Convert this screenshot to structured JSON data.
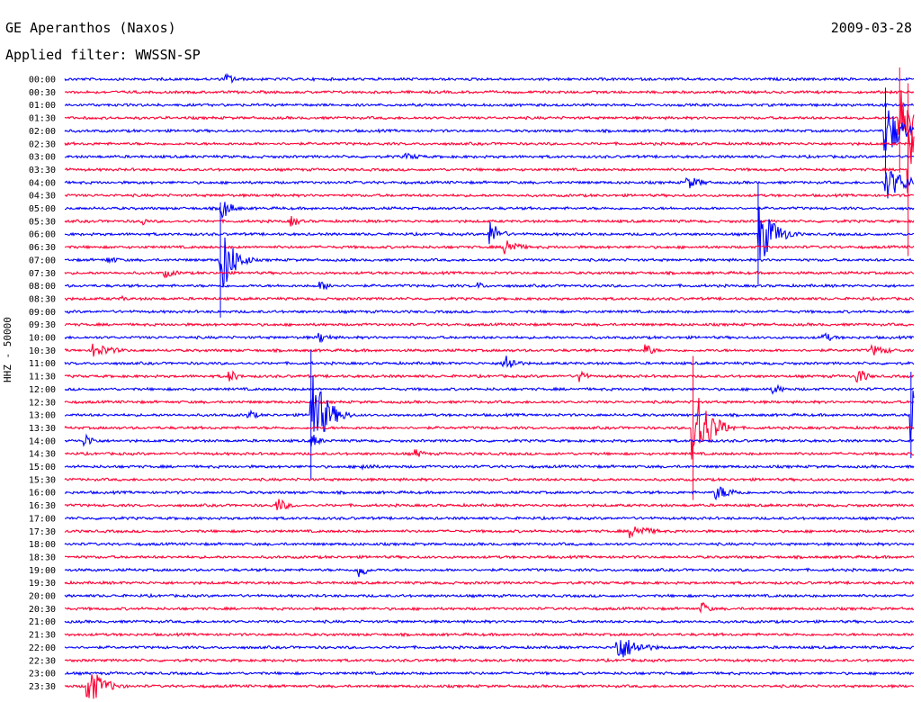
{
  "header": {
    "station": "GE Aperanthos (Naxos)",
    "date": "2009-03-28",
    "filter": "Applied filter: WWSSN-SP"
  },
  "chart_data": {
    "type": "line",
    "description_free": true,
    "ylabel": "HHZ - 50000",
    "colors": [
      "#0000ff",
      "#ff0033"
    ],
    "rows": [
      "00:00",
      "00:30",
      "01:00",
      "01:30",
      "02:00",
      "02:30",
      "03:00",
      "03:30",
      "04:00",
      "04:30",
      "05:00",
      "05:30",
      "06:00",
      "06:30",
      "07:00",
      "07:30",
      "08:00",
      "08:30",
      "09:00",
      "09:30",
      "10:00",
      "10:30",
      "11:00",
      "11:30",
      "12:00",
      "12:30",
      "13:00",
      "13:30",
      "14:00",
      "14:30",
      "15:00",
      "15:30",
      "16:00",
      "16:30",
      "17:00",
      "17:30",
      "18:00",
      "18:30",
      "19:00",
      "19:30",
      "20:00",
      "20:30",
      "21:00",
      "21:30",
      "22:00",
      "22:30",
      "23:00",
      "23:30"
    ],
    "events": [
      {
        "row": 0,
        "minute": 5.7,
        "amp": 6,
        "dur": 1.0
      },
      {
        "row": 2,
        "minute": 29.0,
        "amp": 3,
        "dur": 2.0
      },
      {
        "row": 3,
        "minute": 29.5,
        "amp": 38,
        "dur": 1.5,
        "spike": true
      },
      {
        "row": 4,
        "minute": 29.0,
        "amp": 30,
        "dur": 1.5,
        "spike": true
      },
      {
        "row": 6,
        "minute": 12.0,
        "amp": 4,
        "dur": 2.0
      },
      {
        "row": 8,
        "minute": 22.0,
        "amp": 7,
        "dur": 1.5
      },
      {
        "row": 8,
        "minute": 29.0,
        "amp": 18,
        "dur": 2.0
      },
      {
        "row": 7,
        "minute": 29.8,
        "amp": 60,
        "dur": 1.0,
        "spike": true
      },
      {
        "row": 10,
        "minute": 5.5,
        "amp": 12,
        "dur": 1.0
      },
      {
        "row": 11,
        "minute": 2.7,
        "amp": 5,
        "dur": 0.5
      },
      {
        "row": 11,
        "minute": 8.0,
        "amp": 6,
        "dur": 0.8
      },
      {
        "row": 12,
        "minute": 15.0,
        "amp": 14,
        "dur": 1.0
      },
      {
        "row": 12,
        "minute": 24.5,
        "amp": 35,
        "dur": 1.5,
        "spike": true
      },
      {
        "row": 13,
        "minute": 15.5,
        "amp": 12,
        "dur": 1.2
      },
      {
        "row": 14,
        "minute": 5.5,
        "amp": 40,
        "dur": 1.2,
        "spike": true
      },
      {
        "row": 14,
        "minute": 1.5,
        "amp": 4,
        "dur": 1.5
      },
      {
        "row": 15,
        "minute": 3.5,
        "amp": 5,
        "dur": 1.5
      },
      {
        "row": 16,
        "minute": 9.0,
        "amp": 5,
        "dur": 1.5
      },
      {
        "row": 16,
        "minute": 14.6,
        "amp": 4,
        "dur": 0.6
      },
      {
        "row": 17,
        "minute": 2.0,
        "amp": 3,
        "dur": 0.6
      },
      {
        "row": 21,
        "minute": 1.0,
        "amp": 8,
        "dur": 2.0
      },
      {
        "row": 20,
        "minute": 9.0,
        "amp": 6,
        "dur": 1.0
      },
      {
        "row": 20,
        "minute": 26.8,
        "amp": 5,
        "dur": 1.2
      },
      {
        "row": 21,
        "minute": 20.5,
        "amp": 7,
        "dur": 0.8
      },
      {
        "row": 21,
        "minute": 28.5,
        "amp": 6,
        "dur": 2.0
      },
      {
        "row": 22,
        "minute": 15.5,
        "amp": 12,
        "dur": 1.0
      },
      {
        "row": 23,
        "minute": 5.8,
        "amp": 7,
        "dur": 0.8
      },
      {
        "row": 23,
        "minute": 18.2,
        "amp": 10,
        "dur": 0.5
      },
      {
        "row": 23,
        "minute": 28.0,
        "amp": 10,
        "dur": 0.8
      },
      {
        "row": 24,
        "minute": 25.0,
        "amp": 6,
        "dur": 1.0
      },
      {
        "row": 26,
        "minute": 8.7,
        "amp": 45,
        "dur": 1.5,
        "spike": true
      },
      {
        "row": 26,
        "minute": 6.5,
        "amp": 5,
        "dur": 1.0
      },
      {
        "row": 26,
        "minute": 29.9,
        "amp": 30,
        "dur": 1.5,
        "spike": true
      },
      {
        "row": 27,
        "minute": 22.2,
        "amp": 50,
        "dur": 1.5,
        "spike": true
      },
      {
        "row": 28,
        "minute": 0.7,
        "amp": 7,
        "dur": 1.0
      },
      {
        "row": 28,
        "minute": 8.7,
        "amp": 8,
        "dur": 0.8
      },
      {
        "row": 29,
        "minute": 12.4,
        "amp": 5,
        "dur": 0.8
      },
      {
        "row": 30,
        "minute": 10.5,
        "amp": 4,
        "dur": 1.5
      },
      {
        "row": 32,
        "minute": 23.0,
        "amp": 8,
        "dur": 2.0
      },
      {
        "row": 33,
        "minute": 7.5,
        "amp": 8,
        "dur": 1.0
      },
      {
        "row": 35,
        "minute": 20.0,
        "amp": 8,
        "dur": 2.0
      },
      {
        "row": 38,
        "minute": 10.4,
        "amp": 12,
        "dur": 0.5
      },
      {
        "row": 41,
        "minute": 22.5,
        "amp": 8,
        "dur": 0.6
      },
      {
        "row": 44,
        "minute": 19.5,
        "amp": 16,
        "dur": 2.0
      },
      {
        "row": 47,
        "minute": 0.8,
        "amp": 22,
        "dur": 1.5
      }
    ]
  }
}
